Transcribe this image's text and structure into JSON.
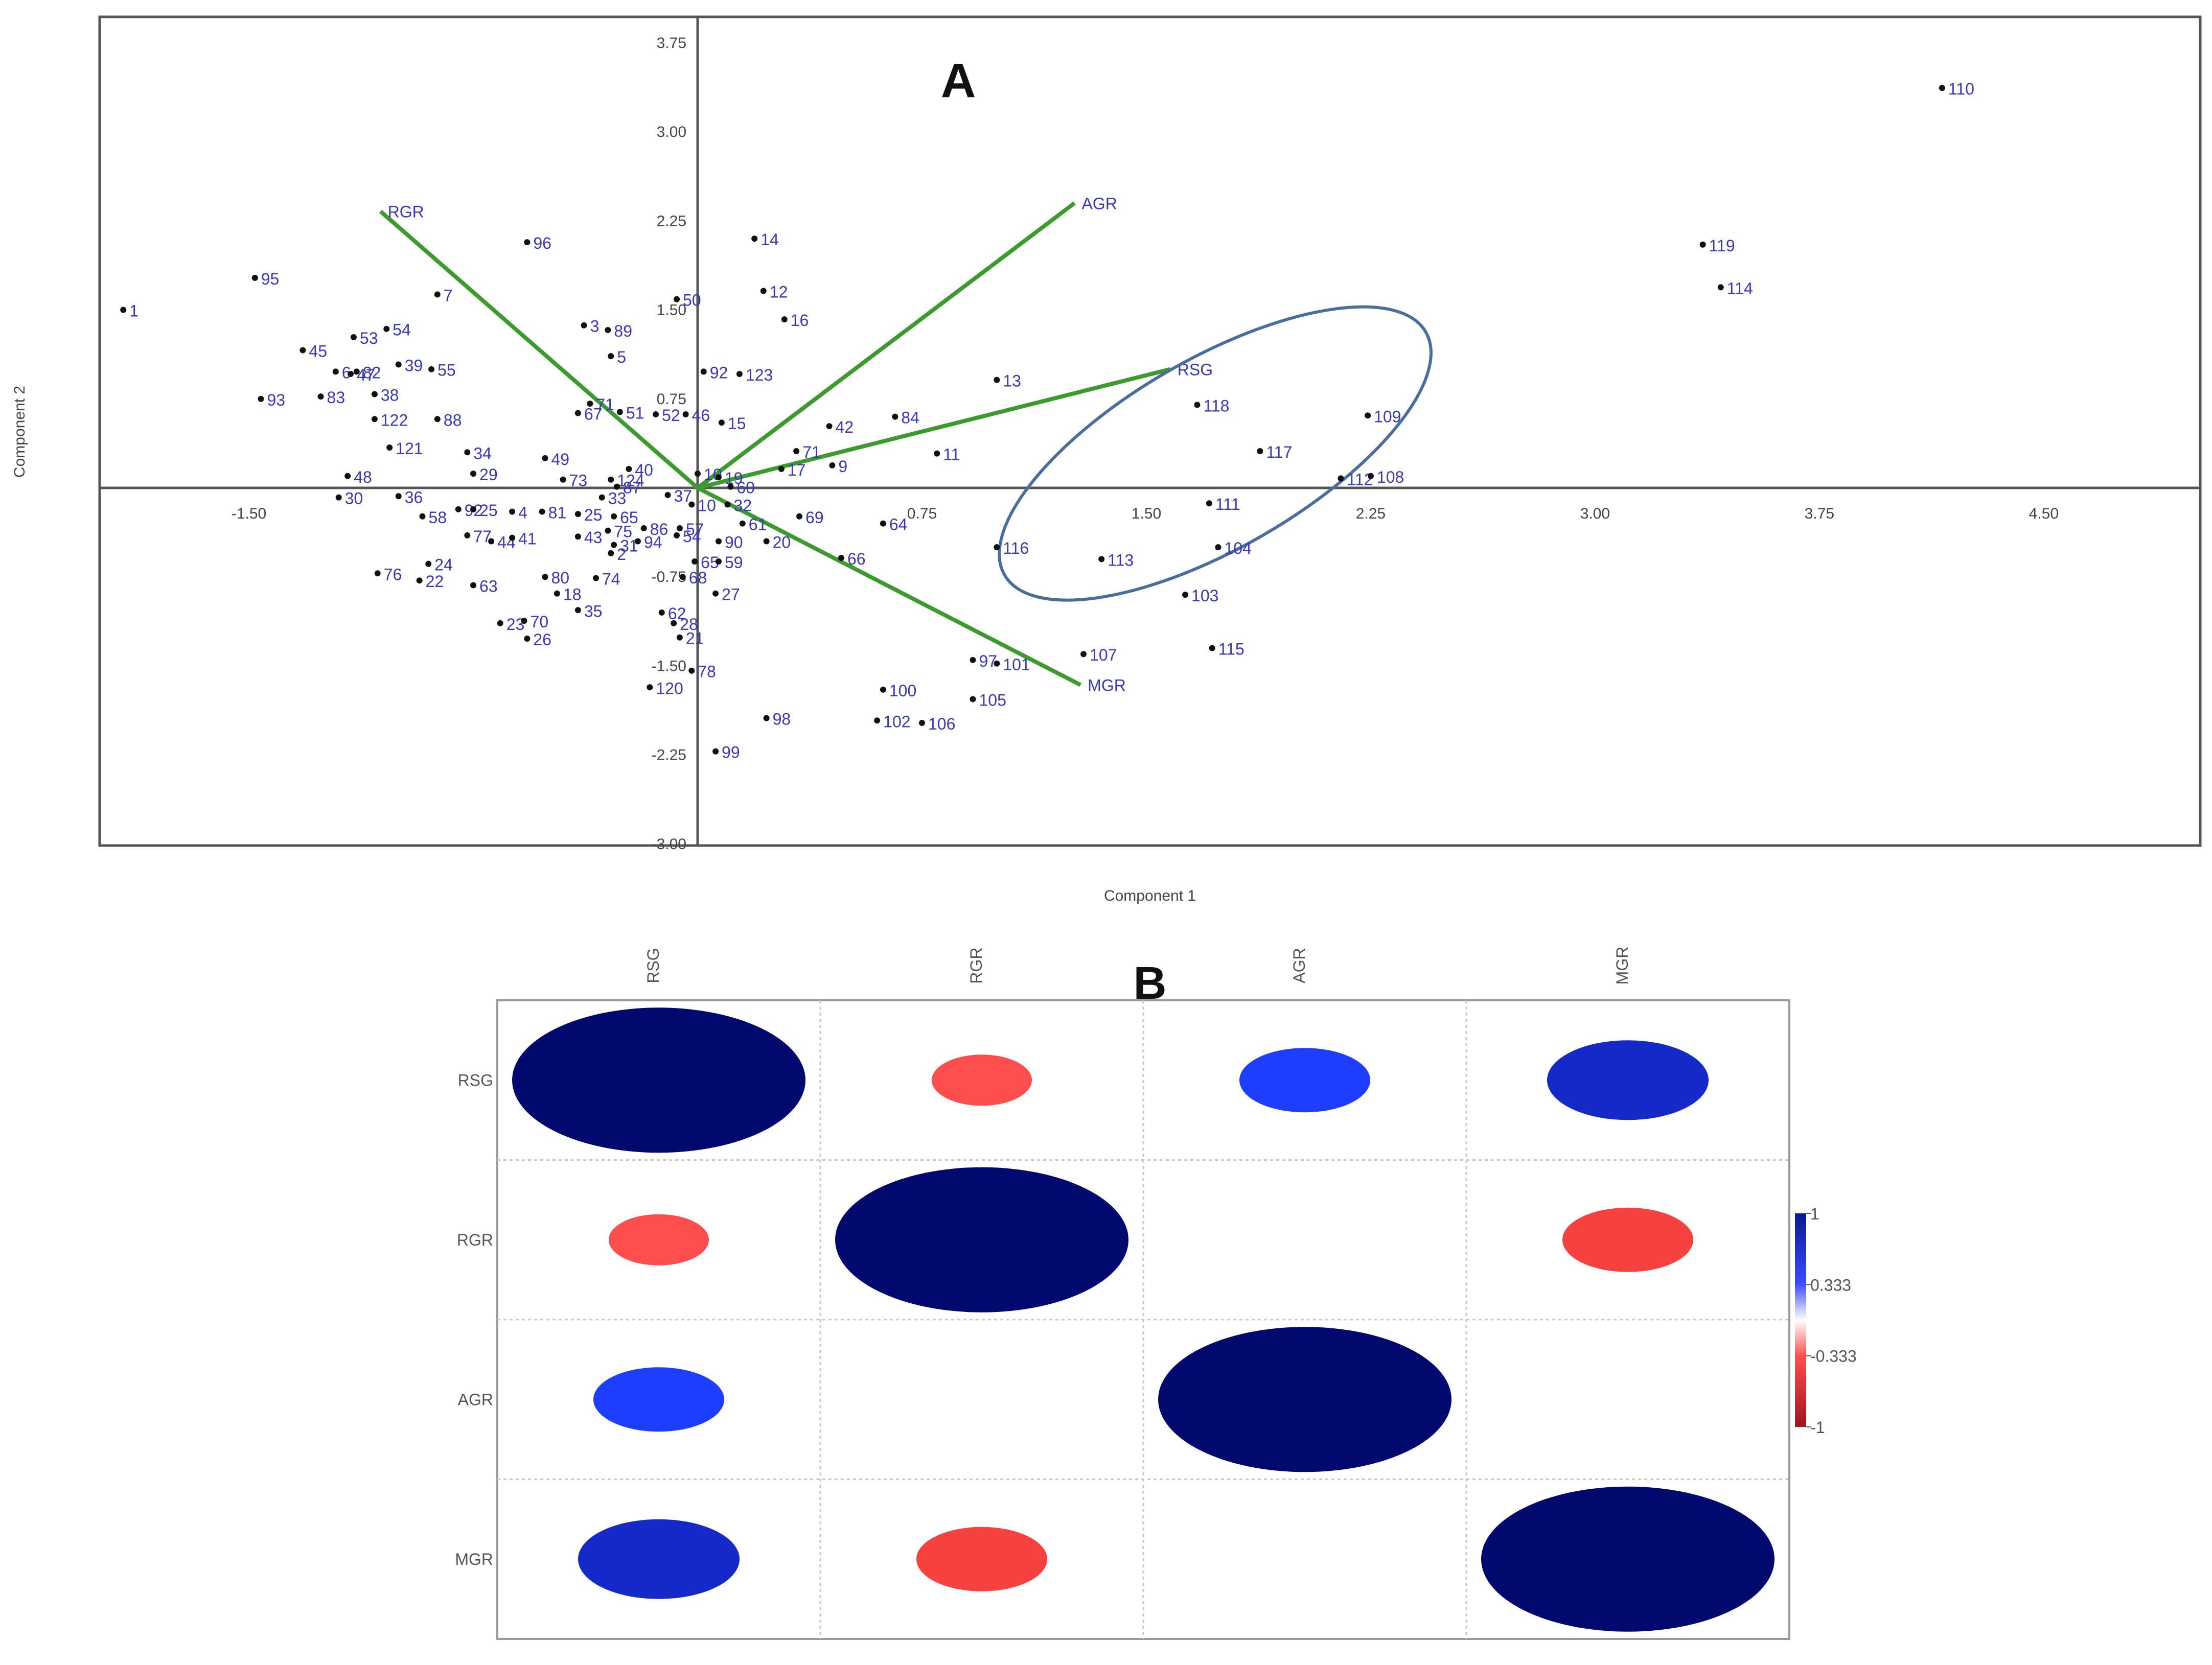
{
  "chart_data": [
    {
      "type": "scatter",
      "subtype": "pca-biplot",
      "panel_label": "A",
      "xlabel": "Component 1",
      "ylabel": "Component 2",
      "xlim": [
        -2.0,
        5.0
      ],
      "ylim": [
        -3.0,
        4.0
      ],
      "x_ticks": [
        -1.5,
        -0.75,
        0,
        0.75,
        1.5,
        2.25,
        3.0,
        3.75,
        4.5
      ],
      "x_tick_labels": [
        "-1.50",
        "",
        "",
        "0.75",
        "1.50",
        "2.25",
        "3.00",
        "3.75",
        "4.50"
      ],
      "y_ticks": [
        3.75,
        3.0,
        2.25,
        1.5,
        0.75,
        0,
        -0.75,
        -1.5,
        -2.25,
        -3.0
      ],
      "y_tick_labels": [
        "3.75",
        "3.00",
        "2.25",
        "1.50",
        "0.75",
        "",
        "-0.75",
        "-1.50",
        "-2.25",
        "-3.00"
      ],
      "legend": "none",
      "loadings": [
        {
          "name": "RGR",
          "x": -1.06,
          "y": 2.33
        },
        {
          "name": "AGR",
          "x": 1.26,
          "y": 2.4
        },
        {
          "name": "RSG",
          "x": 1.58,
          "y": 1.0
        },
        {
          "name": "MGR",
          "x": 1.28,
          "y": -1.66
        }
      ],
      "ellipse": {
        "cx": 1.73,
        "cy": 0.29,
        "rx": 1.27,
        "ry": 0.84,
        "rotation_deg": -30,
        "color": "#4a6e9c"
      },
      "points": [
        {
          "label": "1",
          "x": -1.92,
          "y": 1.5
        },
        {
          "label": "95",
          "x": -1.48,
          "y": 1.77
        },
        {
          "label": "96",
          "x": -0.57,
          "y": 2.07
        },
        {
          "label": "7",
          "x": -0.87,
          "y": 1.63
        },
        {
          "label": "45",
          "x": -1.32,
          "y": 1.16
        },
        {
          "label": "53",
          "x": -1.15,
          "y": 1.27
        },
        {
          "label": "54",
          "x": -1.04,
          "y": 1.34
        },
        {
          "label": "6",
          "x": -1.21,
          "y": 0.98
        },
        {
          "label": "47",
          "x": -1.16,
          "y": 0.96
        },
        {
          "label": "82",
          "x": -1.14,
          "y": 0.98
        },
        {
          "label": "39",
          "x": -1.0,
          "y": 1.04
        },
        {
          "label": "55",
          "x": -0.89,
          "y": 1.0
        },
        {
          "label": "93",
          "x": -1.46,
          "y": 0.75
        },
        {
          "label": "83",
          "x": -1.26,
          "y": 0.77
        },
        {
          "label": "38",
          "x": -1.08,
          "y": 0.79
        },
        {
          "label": "122",
          "x": -1.08,
          "y": 0.58
        },
        {
          "label": "88",
          "x": -0.87,
          "y": 0.58
        },
        {
          "label": "121",
          "x": -1.03,
          "y": 0.34
        },
        {
          "label": "34",
          "x": -0.77,
          "y": 0.3
        },
        {
          "label": "48",
          "x": -1.17,
          "y": 0.1
        },
        {
          "label": "29",
          "x": -0.75,
          "y": 0.12
        },
        {
          "label": "30",
          "x": -1.2,
          "y": -0.08
        },
        {
          "label": "36",
          "x": -1.0,
          "y": -0.07
        },
        {
          "label": "58",
          "x": -0.92,
          "y": -0.24
        },
        {
          "label": "92",
          "x": -0.8,
          "y": -0.18
        },
        {
          "label": "25",
          "x": -0.75,
          "y": -0.18
        },
        {
          "label": "77",
          "x": -0.77,
          "y": -0.4
        },
        {
          "label": "44",
          "x": -0.69,
          "y": -0.45
        },
        {
          "label": "4",
          "x": -0.62,
          "y": -0.2
        },
        {
          "label": "81",
          "x": -0.52,
          "y": -0.2
        },
        {
          "label": "41",
          "x": -0.62,
          "y": -0.42
        },
        {
          "label": "49",
          "x": -0.51,
          "y": 0.25
        },
        {
          "label": "73",
          "x": -0.45,
          "y": 0.07
        },
        {
          "label": "124",
          "x": -0.29,
          "y": 0.07
        },
        {
          "label": "40",
          "x": -0.23,
          "y": 0.16
        },
        {
          "label": "87",
          "x": -0.27,
          "y": 0.01
        },
        {
          "label": "33",
          "x": -0.32,
          "y": -0.08
        },
        {
          "label": "25",
          "x": -0.4,
          "y": -0.22
        },
        {
          "label": "43",
          "x": -0.4,
          "y": -0.41
        },
        {
          "label": "65",
          "x": -0.28,
          "y": -0.24
        },
        {
          "label": "75",
          "x": -0.3,
          "y": -0.36
        },
        {
          "label": "31",
          "x": -0.28,
          "y": -0.48
        },
        {
          "label": "2",
          "x": -0.29,
          "y": -0.55
        },
        {
          "label": "86",
          "x": -0.18,
          "y": -0.34
        },
        {
          "label": "94",
          "x": -0.2,
          "y": -0.45
        },
        {
          "label": "76",
          "x": -1.07,
          "y": -0.72
        },
        {
          "label": "24",
          "x": -0.9,
          "y": -0.64
        },
        {
          "label": "22",
          "x": -0.93,
          "y": -0.78
        },
        {
          "label": "63",
          "x": -0.75,
          "y": -0.82
        },
        {
          "label": "80",
          "x": -0.51,
          "y": -0.75
        },
        {
          "label": "18",
          "x": -0.47,
          "y": -0.89
        },
        {
          "label": "74",
          "x": -0.34,
          "y": -0.76
        },
        {
          "label": "35",
          "x": -0.4,
          "y": -1.03
        },
        {
          "label": "23",
          "x": -0.66,
          "y": -1.14
        },
        {
          "label": "70",
          "x": -0.58,
          "y": -1.12
        },
        {
          "label": "26",
          "x": -0.57,
          "y": -1.27
        },
        {
          "label": "3",
          "x": -0.38,
          "y": 1.37
        },
        {
          "label": "89",
          "x": -0.3,
          "y": 1.33
        },
        {
          "label": "5",
          "x": -0.29,
          "y": 1.11
        },
        {
          "label": "67",
          "x": -0.4,
          "y": 0.63
        },
        {
          "label": "71",
          "x": -0.36,
          "y": 0.71
        },
        {
          "label": "51",
          "x": -0.26,
          "y": 0.64
        },
        {
          "label": "52",
          "x": -0.14,
          "y": 0.62
        },
        {
          "label": "46",
          "x": -0.04,
          "y": 0.62
        },
        {
          "label": "15",
          "x": 0.08,
          "y": 0.55
        },
        {
          "label": "50",
          "x": -0.07,
          "y": 1.59
        },
        {
          "label": "92",
          "x": 0.02,
          "y": 0.98
        },
        {
          "label": "123",
          "x": 0.14,
          "y": 0.96
        },
        {
          "label": "14",
          "x": 0.19,
          "y": 2.1
        },
        {
          "label": "12",
          "x": 0.22,
          "y": 1.66
        },
        {
          "label": "16",
          "x": 0.29,
          "y": 1.42
        },
        {
          "label": "42",
          "x": 0.44,
          "y": 0.52
        },
        {
          "label": "84",
          "x": 0.66,
          "y": 0.6
        },
        {
          "label": "13",
          "x": 1.0,
          "y": 0.91
        },
        {
          "label": "11",
          "x": 0.8,
          "y": 0.29
        },
        {
          "label": "71",
          "x": 0.33,
          "y": 0.31
        },
        {
          "label": "9",
          "x": 0.45,
          "y": 0.19
        },
        {
          "label": "17",
          "x": 0.28,
          "y": 0.16
        },
        {
          "label": "10",
          "x": 0.0,
          "y": 0.12
        },
        {
          "label": "19",
          "x": 0.07,
          "y": 0.09
        },
        {
          "label": "60",
          "x": 0.11,
          "y": 0.01
        },
        {
          "label": "32",
          "x": 0.1,
          "y": -0.14
        },
        {
          "label": "37",
          "x": -0.1,
          "y": -0.06
        },
        {
          "label": "10",
          "x": -0.02,
          "y": -0.14
        },
        {
          "label": "61",
          "x": 0.15,
          "y": -0.3
        },
        {
          "label": "69",
          "x": 0.34,
          "y": -0.24
        },
        {
          "label": "64",
          "x": 0.62,
          "y": -0.3
        },
        {
          "label": "90",
          "x": 0.07,
          "y": -0.45
        },
        {
          "label": "20",
          "x": 0.23,
          "y": -0.45
        },
        {
          "label": "66",
          "x": 0.48,
          "y": -0.59
        },
        {
          "label": "57",
          "x": -0.06,
          "y": -0.34
        },
        {
          "label": "54",
          "x": -0.07,
          "y": -0.4
        },
        {
          "label": "65",
          "x": -0.01,
          "y": -0.62
        },
        {
          "label": "59",
          "x": 0.07,
          "y": -0.62
        },
        {
          "label": "68",
          "x": -0.05,
          "y": -0.75
        },
        {
          "label": "27",
          "x": 0.06,
          "y": -0.89
        },
        {
          "label": "62",
          "x": -0.12,
          "y": -1.05
        },
        {
          "label": "28",
          "x": -0.08,
          "y": -1.14
        },
        {
          "label": "21",
          "x": -0.06,
          "y": -1.26
        },
        {
          "label": "78",
          "x": -0.02,
          "y": -1.54
        },
        {
          "label": "120",
          "x": -0.16,
          "y": -1.68
        },
        {
          "label": "98",
          "x": 0.23,
          "y": -1.94
        },
        {
          "label": "99",
          "x": 0.06,
          "y": -2.22
        },
        {
          "label": "97",
          "x": 0.92,
          "y": -1.45
        },
        {
          "label": "101",
          "x": 1.0,
          "y": -1.48
        },
        {
          "label": "100",
          "x": 0.62,
          "y": -1.7
        },
        {
          "label": "105",
          "x": 0.92,
          "y": -1.78
        },
        {
          "label": "102",
          "x": 0.6,
          "y": -1.96
        },
        {
          "label": "106",
          "x": 0.75,
          "y": -1.98
        },
        {
          "label": "107",
          "x": 1.29,
          "y": -1.4
        },
        {
          "label": "116",
          "x": 1.0,
          "y": -0.5
        },
        {
          "label": "113",
          "x": 1.35,
          "y": -0.6
        },
        {
          "label": "103",
          "x": 1.63,
          "y": -0.9
        },
        {
          "label": "104",
          "x": 1.74,
          "y": -0.5
        },
        {
          "label": "111",
          "x": 1.71,
          "y": -0.13
        },
        {
          "label": "115",
          "x": 1.72,
          "y": -1.35
        },
        {
          "label": "118",
          "x": 1.67,
          "y": 0.7
        },
        {
          "label": "117",
          "x": 1.88,
          "y": 0.31
        },
        {
          "label": "112",
          "x": 2.15,
          "y": 0.08
        },
        {
          "label": "108",
          "x": 2.25,
          "y": 0.1
        },
        {
          "label": "109",
          "x": 2.24,
          "y": 0.61
        },
        {
          "label": "110",
          "x": 4.16,
          "y": 3.37
        },
        {
          "label": "119",
          "x": 3.36,
          "y": 2.05
        },
        {
          "label": "114",
          "x": 3.42,
          "y": 1.69
        }
      ]
    },
    {
      "type": "heatmap",
      "subtype": "correlation-ellipse-matrix",
      "panel_label": "B",
      "variables": [
        "RSG",
        "RGR",
        "AGR",
        "MGR"
      ],
      "matrix": [
        [
          1.0,
          -0.4,
          0.6,
          0.75
        ],
        [
          -0.4,
          1.0,
          0.0,
          -0.55
        ],
        [
          0.6,
          0.0,
          1.0,
          0.0
        ],
        [
          0.75,
          -0.55,
          0.0,
          1.0
        ]
      ],
      "colorbar": {
        "range": [
          -1,
          1
        ],
        "tick_values": [
          1,
          0.333,
          -0.333,
          -1
        ],
        "tick_labels": [
          "1",
          "0.333",
          "-0.333",
          "-1"
        ],
        "colors": {
          "neg_max": "#b2182b",
          "neg": "#ff4d4d",
          "zero": "#ffffff",
          "pos": "#1f3dff",
          "pos_max": "#000a6e"
        }
      }
    }
  ],
  "colors": {
    "point": "#111111",
    "point_label": "#3a3ab0",
    "loading_line": "#3c9a2e",
    "loading_label": "#3a3ab0",
    "axis": "#555555",
    "tick_label": "#444444",
    "grid": "#c8c8c8",
    "panel_label": "#111111"
  }
}
